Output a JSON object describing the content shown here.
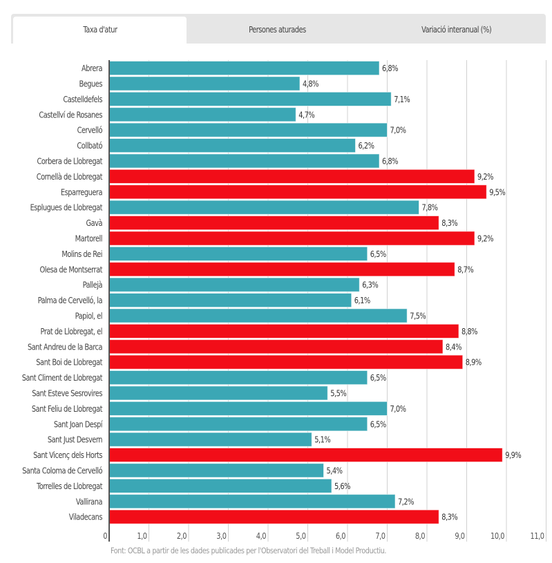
{
  "tabs": [
    {
      "label": "Taxa d'atur",
      "active": true
    },
    {
      "label": "Persones aturades",
      "active": false
    },
    {
      "label": "Variació interanual (%)",
      "active": false
    }
  ],
  "source_note": "Font: OCBL a partir de les dades publicades per l'Observatori del Treball i Model Productiu.",
  "colors": {
    "below_threshold": "#3ba7b5",
    "above_threshold": "#f20d18",
    "gridline": "#d0d0d0",
    "axis": "#555555"
  },
  "chart_data": {
    "type": "bar",
    "orientation": "horizontal",
    "title": "",
    "xlabel": "",
    "ylabel": "",
    "value_suffix": "%",
    "decimal_separator": ",",
    "xlim": [
      0,
      11
    ],
    "x_ticks": [
      "0",
      "1,0",
      "2,0",
      "3,0",
      "4,0",
      "5,0",
      "6,0",
      "7,0",
      "8,0",
      "9,0",
      "10,0",
      "11,0"
    ],
    "grid": true,
    "legend": "none",
    "categories": [
      "Abrera",
      "Begues",
      "Castelldefels",
      "Castellví de Rosanes",
      "Cervelló",
      "Collbató",
      "Corbera de Llobregat",
      "Cornellà de Llobregat",
      "Esparreguera",
      "Esplugues de Llobregat",
      "Gavà",
      "Martorell",
      "Molins de Rei",
      "Olesa de Montserrat",
      "Pallejà",
      "Palma de Cervelló, la",
      "Papiol, el",
      "Prat de Llobregat, el",
      "Sant Andreu de la Barca",
      "Sant Boi de Llobregat",
      "Sant Climent de Llobregat",
      "Sant Esteve Sesrovires",
      "Sant Feliu de Llobregat",
      "Sant Joan Despí",
      "Sant Just Desvern",
      "Sant Vicenç dels Horts",
      "Santa Coloma de Cervelló",
      "Torrelles de Llobregat",
      "Vallirana",
      "Viladecans"
    ],
    "values": [
      6.8,
      4.8,
      7.1,
      4.7,
      7.0,
      6.2,
      6.8,
      9.2,
      9.5,
      7.8,
      8.3,
      9.2,
      6.5,
      8.7,
      6.3,
      6.1,
      7.5,
      8.8,
      8.4,
      8.9,
      6.5,
      5.5,
      7.0,
      6.5,
      5.1,
      9.9,
      5.4,
      5.6,
      7.2,
      8.3
    ],
    "labels": [
      "6,8%",
      "4,8%",
      "7,1%",
      "4,7%",
      "7,0%",
      "6,2%",
      "6,8%",
      "9,2%",
      "9,5%",
      "7,8%",
      "8,3%",
      "9,2%",
      "6,5%",
      "8,7%",
      "6,3%",
      "6,1%",
      "7,5%",
      "8,8%",
      "8,4%",
      "8,9%",
      "6,5%",
      "5,5%",
      "7,0%",
      "6,5%",
      "5,1%",
      "9,9%",
      "5,4%",
      "5,6%",
      "7,2%",
      "8,3%"
    ],
    "highlight": [
      "normal",
      "normal",
      "normal",
      "normal",
      "normal",
      "normal",
      "normal",
      "high",
      "high",
      "normal",
      "high",
      "high",
      "normal",
      "high",
      "normal",
      "normal",
      "normal",
      "high",
      "high",
      "high",
      "normal",
      "normal",
      "normal",
      "normal",
      "normal",
      "high",
      "normal",
      "normal",
      "normal",
      "high"
    ]
  }
}
